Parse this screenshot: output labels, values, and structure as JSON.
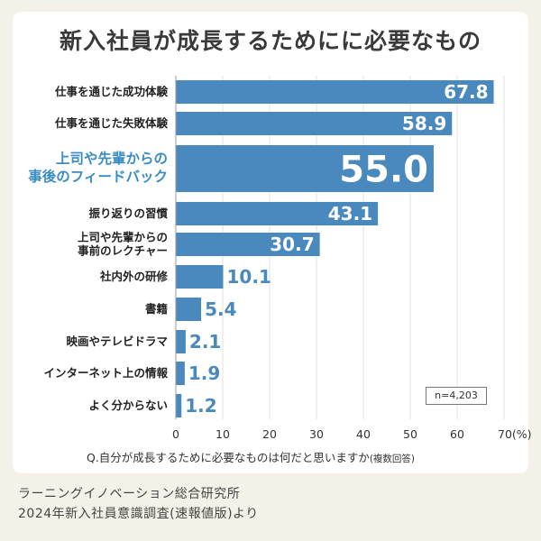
{
  "chart_data": {
    "type": "bar",
    "orientation": "horizontal",
    "title": "新入社員が成長するためにに必要なもの",
    "categories": [
      "仕事を通じた成功体験",
      "仕事を通じた失敗体験",
      "上司や先輩からの\n事後のフィードバック",
      "振り返りの習慣",
      "上司や先輩からの\n事前のレクチャー",
      "社内外の研修",
      "書籍",
      "映画やテレビドラマ",
      "インターネット上の情報",
      "よく分からない"
    ],
    "values": [
      67.8,
      58.9,
      55.0,
      43.1,
      30.7,
      10.1,
      5.4,
      2.1,
      1.9,
      1.2
    ],
    "value_labels": [
      "67.8",
      "58.9",
      "55.0",
      "43.1",
      "30.7",
      "10.1",
      "5.4",
      "2.1",
      "1.9",
      "1.2"
    ],
    "highlight_index": 2,
    "xlim": [
      0,
      70
    ],
    "xticks": [
      0,
      10,
      20,
      30,
      40,
      50,
      60,
      70
    ],
    "xtick_labels": [
      "0",
      "10",
      "20",
      "30",
      "40",
      "50",
      "60",
      "70(%)"
    ],
    "xlabel": "Q.自分が成長するために必要なものは何だと思いますか",
    "xlabel_note": "(複数回答)",
    "sample_note": "n=4,203",
    "bar_color": "#4a89bd",
    "highlight_text_color": "#3a8cc1",
    "grid": true
  },
  "source": {
    "line1": "ラーニングイノベーション総合研究所",
    "line2": "2024年新入社員意識調査(速報値版)より"
  }
}
